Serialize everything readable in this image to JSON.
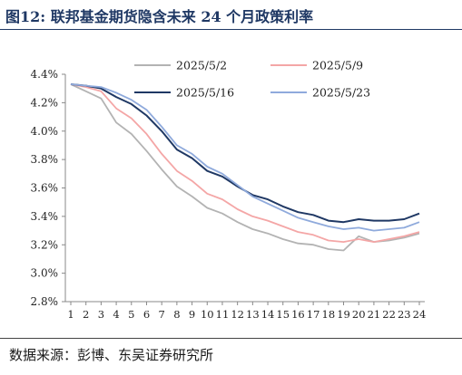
{
  "figure": {
    "title": "图12:  联邦基金期货隐含未来 24 个月政策利率",
    "source": "数据来源：彭博、东吴证券研究所"
  },
  "chart_data": {
    "type": "line",
    "title": "",
    "xlabel": "",
    "ylabel": "",
    "ylim": [
      2.8,
      4.4
    ],
    "y_ticks": [
      "2.8%",
      "3.0%",
      "3.2%",
      "3.4%",
      "3.6%",
      "3.8%",
      "4.0%",
      "4.2%",
      "4.4%"
    ],
    "y_tick_values": [
      2.8,
      3.0,
      3.2,
      3.4,
      3.6,
      3.8,
      4.0,
      4.2,
      4.4
    ],
    "x": [
      1,
      2,
      3,
      4,
      5,
      6,
      7,
      8,
      9,
      10,
      11,
      12,
      13,
      14,
      15,
      16,
      17,
      18,
      19,
      20,
      21,
      22,
      23,
      24
    ],
    "x_tick_labels": [
      "1",
      "2",
      "3",
      "4",
      "5",
      "6",
      "7",
      "8",
      "9",
      "10",
      "11",
      "12",
      "13",
      "14",
      "15",
      "16",
      "17",
      "18",
      "19",
      "20",
      "21",
      "22",
      "23",
      "24"
    ],
    "grid": false,
    "legend_position": "top",
    "series": [
      {
        "name": "2025/5/2",
        "color": "#b3b3b3",
        "values": [
          4.33,
          4.28,
          4.23,
          4.06,
          3.98,
          3.86,
          3.73,
          3.61,
          3.54,
          3.46,
          3.42,
          3.36,
          3.31,
          3.28,
          3.24,
          3.21,
          3.2,
          3.17,
          3.16,
          3.26,
          3.22,
          3.23,
          3.25,
          3.28
        ]
      },
      {
        "name": "2025/5/9",
        "color": "#f4a6a6",
        "values": [
          4.33,
          4.31,
          4.28,
          4.16,
          4.09,
          3.98,
          3.84,
          3.72,
          3.65,
          3.56,
          3.52,
          3.45,
          3.4,
          3.37,
          3.33,
          3.29,
          3.27,
          3.23,
          3.22,
          3.24,
          3.22,
          3.24,
          3.26,
          3.29
        ]
      },
      {
        "name": "2025/5/16",
        "color": "#1f3864",
        "values": [
          4.33,
          4.32,
          4.3,
          4.24,
          4.19,
          4.11,
          4.0,
          3.87,
          3.81,
          3.72,
          3.68,
          3.61,
          3.55,
          3.52,
          3.47,
          3.43,
          3.41,
          3.37,
          3.36,
          3.38,
          3.37,
          3.37,
          3.38,
          3.42
        ]
      },
      {
        "name": "2025/5/23",
        "color": "#8faadc",
        "values": [
          4.33,
          4.32,
          4.31,
          4.27,
          4.22,
          4.15,
          4.03,
          3.9,
          3.84,
          3.75,
          3.7,
          3.62,
          3.54,
          3.49,
          3.44,
          3.39,
          3.36,
          3.33,
          3.31,
          3.32,
          3.3,
          3.31,
          3.32,
          3.36
        ]
      }
    ]
  }
}
